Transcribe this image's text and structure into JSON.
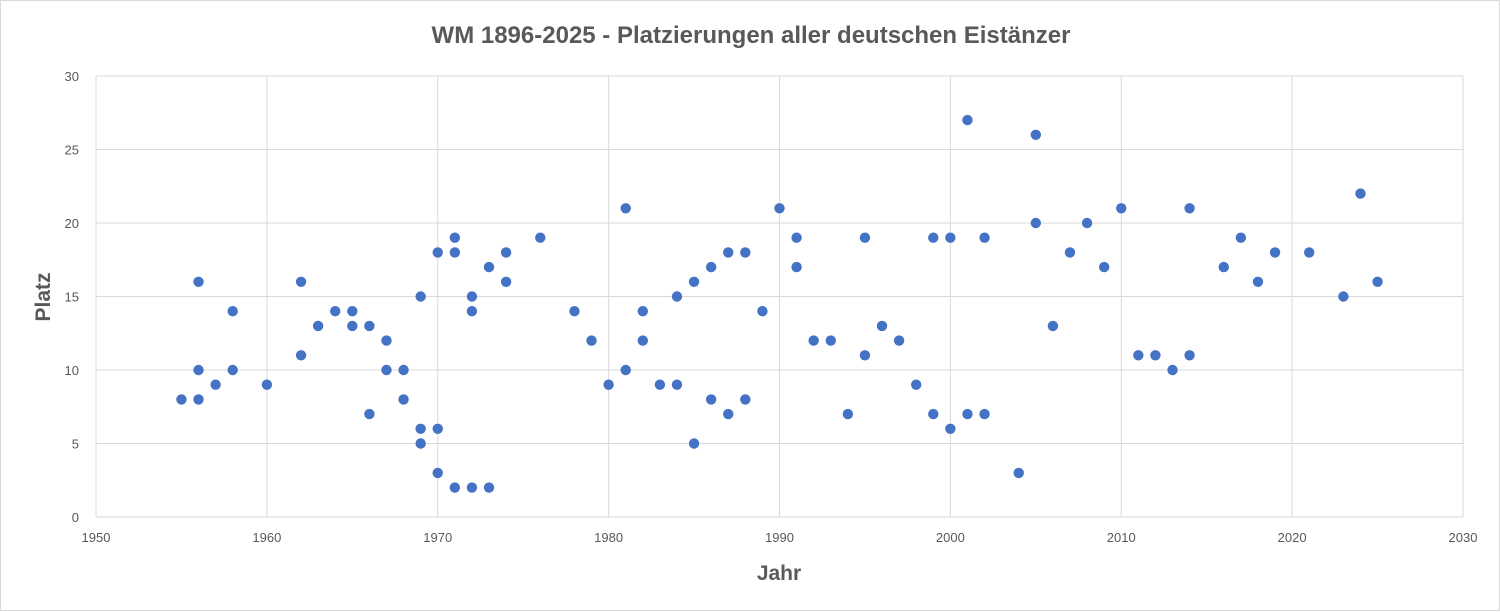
{
  "chart_data": {
    "type": "scatter",
    "title": "WM 1896-2025 - Platzierungen aller deutschen Eistänzer",
    "xlabel": "Jahr",
    "ylabel": "Platz",
    "xlim": [
      1950,
      2030
    ],
    "ylim": [
      0,
      30
    ],
    "x_ticks": [
      1950,
      1960,
      1970,
      1980,
      1990,
      2000,
      2010,
      2020,
      2030
    ],
    "y_ticks": [
      0,
      5,
      10,
      15,
      20,
      25,
      30
    ],
    "grid": true,
    "marker_color": "#4472c4",
    "points": [
      [
        1955,
        8
      ],
      [
        1956,
        16
      ],
      [
        1956,
        10
      ],
      [
        1956,
        8
      ],
      [
        1957,
        9
      ],
      [
        1958,
        14
      ],
      [
        1958,
        10
      ],
      [
        1960,
        9
      ],
      [
        1962,
        16
      ],
      [
        1962,
        11
      ],
      [
        1963,
        13
      ],
      [
        1964,
        14
      ],
      [
        1965,
        14
      ],
      [
        1965,
        13
      ],
      [
        1966,
        13
      ],
      [
        1966,
        7
      ],
      [
        1967,
        12
      ],
      [
        1967,
        10
      ],
      [
        1968,
        10
      ],
      [
        1968,
        8
      ],
      [
        1969,
        15
      ],
      [
        1969,
        6
      ],
      [
        1969,
        5
      ],
      [
        1970,
        18
      ],
      [
        1970,
        6
      ],
      [
        1970,
        3
      ],
      [
        1971,
        19
      ],
      [
        1971,
        18
      ],
      [
        1971,
        2
      ],
      [
        1972,
        15
      ],
      [
        1972,
        14
      ],
      [
        1972,
        2
      ],
      [
        1973,
        17
      ],
      [
        1973,
        2
      ],
      [
        1974,
        18
      ],
      [
        1974,
        16
      ],
      [
        1976,
        19
      ],
      [
        1978,
        14
      ],
      [
        1979,
        12
      ],
      [
        1980,
        9
      ],
      [
        1981,
        21
      ],
      [
        1981,
        10
      ],
      [
        1982,
        14
      ],
      [
        1982,
        12
      ],
      [
        1983,
        9
      ],
      [
        1984,
        15
      ],
      [
        1984,
        9
      ],
      [
        1985,
        16
      ],
      [
        1985,
        5
      ],
      [
        1986,
        17
      ],
      [
        1986,
        8
      ],
      [
        1987,
        18
      ],
      [
        1987,
        7
      ],
      [
        1988,
        18
      ],
      [
        1988,
        8
      ],
      [
        1989,
        14
      ],
      [
        1990,
        21
      ],
      [
        1991,
        19
      ],
      [
        1991,
        17
      ],
      [
        1992,
        12
      ],
      [
        1993,
        12
      ],
      [
        1994,
        7
      ],
      [
        1995,
        19
      ],
      [
        1995,
        11
      ],
      [
        1996,
        13
      ],
      [
        1997,
        12
      ],
      [
        1998,
        9
      ],
      [
        1999,
        19
      ],
      [
        1999,
        7
      ],
      [
        2000,
        19
      ],
      [
        2000,
        6
      ],
      [
        2001,
        27
      ],
      [
        2001,
        7
      ],
      [
        2002,
        19
      ],
      [
        2002,
        7
      ],
      [
        2004,
        3
      ],
      [
        2005,
        26
      ],
      [
        2005,
        20
      ],
      [
        2006,
        13
      ],
      [
        2007,
        18
      ],
      [
        2008,
        20
      ],
      [
        2009,
        17
      ],
      [
        2010,
        21
      ],
      [
        2011,
        11
      ],
      [
        2012,
        11
      ],
      [
        2013,
        10
      ],
      [
        2014,
        21
      ],
      [
        2014,
        11
      ],
      [
        2016,
        17
      ],
      [
        2017,
        19
      ],
      [
        2018,
        16
      ],
      [
        2019,
        18
      ],
      [
        2021,
        18
      ],
      [
        2023,
        15
      ],
      [
        2024,
        22
      ],
      [
        2025,
        16
      ]
    ]
  }
}
